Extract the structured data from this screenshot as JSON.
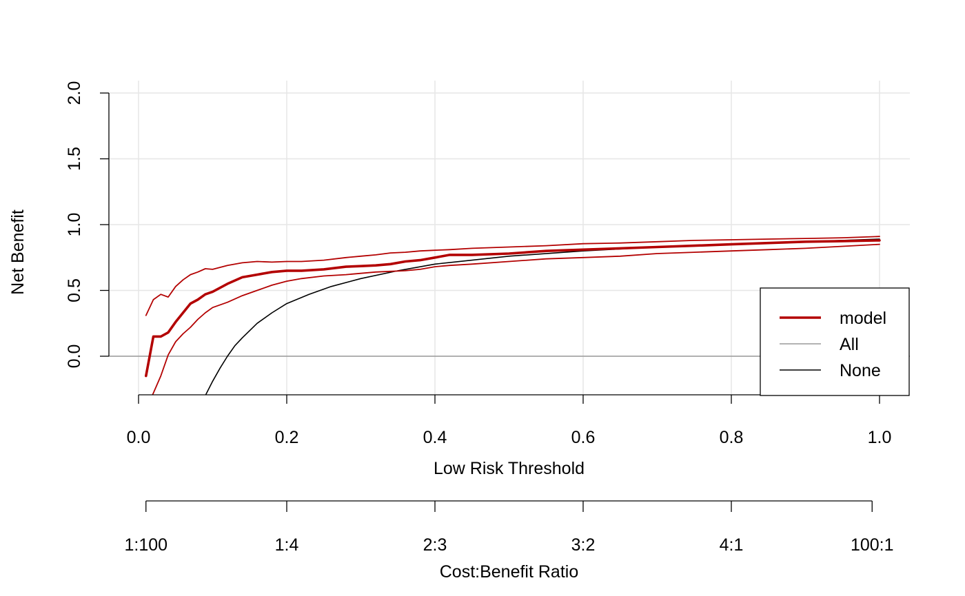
{
  "chart_data": {
    "type": "line",
    "title": "",
    "xlabel": "Low Risk Threshold",
    "ylabel": "Net Benefit",
    "xlim": [
      0.0,
      1.0
    ],
    "ylim": [
      -0.3,
      2.0
    ],
    "x_ticks": [
      "0.0",
      "0.2",
      "0.4",
      "0.6",
      "0.8",
      "1.0"
    ],
    "y_ticks": [
      "0.0",
      "0.5",
      "1.0",
      "1.5",
      "2.0"
    ],
    "grid": true,
    "secondary_axis": {
      "label": "Cost:Benefit Ratio",
      "ticks": [
        "1:100",
        "1:4",
        "2:3",
        "3:2",
        "4:1",
        "100:1"
      ],
      "positions": [
        0.01,
        0.2,
        0.4,
        0.6,
        0.8,
        0.99
      ]
    },
    "legend": {
      "placement": "bottom-right",
      "entries": [
        {
          "name": "model",
          "color": "#b30000"
        },
        {
          "name": "All",
          "color": "#999999"
        },
        {
          "name": "None",
          "color": "#000000"
        }
      ]
    },
    "series": [
      {
        "name": "model",
        "color": "#b30000",
        "x": [
          0.01,
          0.02,
          0.03,
          0.04,
          0.05,
          0.06,
          0.07,
          0.08,
          0.09,
          0.1,
          0.12,
          0.14,
          0.16,
          0.18,
          0.2,
          0.22,
          0.25,
          0.28,
          0.3,
          0.32,
          0.34,
          0.36,
          0.38,
          0.4,
          0.42,
          0.45,
          0.5,
          0.55,
          0.6,
          0.65,
          0.7,
          0.75,
          0.8,
          0.85,
          0.9,
          0.95,
          1.0
        ],
        "values": [
          -0.15,
          0.15,
          0.15,
          0.18,
          0.26,
          0.33,
          0.4,
          0.43,
          0.47,
          0.49,
          0.55,
          0.6,
          0.62,
          0.64,
          0.65,
          0.65,
          0.66,
          0.68,
          0.685,
          0.69,
          0.7,
          0.72,
          0.73,
          0.75,
          0.77,
          0.77,
          0.78,
          0.8,
          0.81,
          0.82,
          0.83,
          0.84,
          0.85,
          0.86,
          0.87,
          0.875,
          0.88
        ]
      },
      {
        "name": "model upper",
        "color": "#b30000",
        "x": [
          0.01,
          0.02,
          0.03,
          0.04,
          0.05,
          0.06,
          0.07,
          0.08,
          0.09,
          0.1,
          0.12,
          0.14,
          0.16,
          0.18,
          0.2,
          0.22,
          0.25,
          0.28,
          0.3,
          0.32,
          0.34,
          0.36,
          0.38,
          0.4,
          0.42,
          0.45,
          0.5,
          0.55,
          0.6,
          0.65,
          0.7,
          0.75,
          0.8,
          0.85,
          0.9,
          0.95,
          1.0
        ],
        "values": [
          0.31,
          0.43,
          0.47,
          0.45,
          0.53,
          0.58,
          0.62,
          0.64,
          0.665,
          0.66,
          0.69,
          0.71,
          0.72,
          0.715,
          0.72,
          0.72,
          0.73,
          0.75,
          0.76,
          0.77,
          0.785,
          0.79,
          0.8,
          0.805,
          0.81,
          0.82,
          0.83,
          0.84,
          0.855,
          0.86,
          0.87,
          0.88,
          0.885,
          0.89,
          0.895,
          0.9,
          0.91
        ]
      },
      {
        "name": "model lower",
        "color": "#b30000",
        "x": [
          0.01,
          0.02,
          0.03,
          0.04,
          0.05,
          0.06,
          0.07,
          0.08,
          0.09,
          0.1,
          0.12,
          0.14,
          0.16,
          0.18,
          0.2,
          0.22,
          0.25,
          0.28,
          0.3,
          0.32,
          0.34,
          0.36,
          0.38,
          0.4,
          0.42,
          0.45,
          0.5,
          0.55,
          0.6,
          0.65,
          0.7,
          0.75,
          0.8,
          0.85,
          0.9,
          0.95,
          1.0
        ],
        "values": [
          -0.4,
          -0.28,
          -0.15,
          0.01,
          0.11,
          0.17,
          0.22,
          0.28,
          0.33,
          0.37,
          0.41,
          0.46,
          0.5,
          0.54,
          0.57,
          0.59,
          0.61,
          0.62,
          0.63,
          0.64,
          0.645,
          0.65,
          0.66,
          0.68,
          0.69,
          0.7,
          0.72,
          0.74,
          0.75,
          0.76,
          0.78,
          0.79,
          0.8,
          0.81,
          0.82,
          0.835,
          0.85
        ]
      },
      {
        "name": "All",
        "color": "#999999",
        "x": [
          0.0,
          1.0
        ],
        "values": [
          0.0,
          0.0
        ]
      },
      {
        "name": "None",
        "color": "#000000",
        "x": [
          0.09,
          0.1,
          0.11,
          0.12,
          0.13,
          0.14,
          0.16,
          0.18,
          0.2,
          0.23,
          0.26,
          0.3,
          0.35,
          0.4,
          0.45,
          0.5,
          0.6,
          0.7,
          0.8,
          0.9,
          1.0
        ],
        "values": [
          -0.3,
          -0.19,
          -0.09,
          0.0,
          0.08,
          0.14,
          0.25,
          0.33,
          0.4,
          0.47,
          0.53,
          0.59,
          0.65,
          0.7,
          0.73,
          0.76,
          0.8,
          0.83,
          0.85,
          0.87,
          0.89
        ]
      }
    ]
  }
}
